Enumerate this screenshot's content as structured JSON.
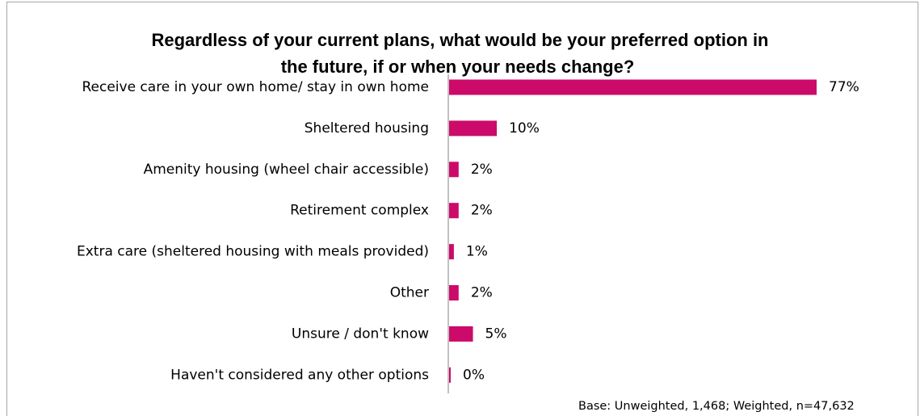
{
  "chart_data": {
    "type": "bar",
    "orientation": "horizontal",
    "title_lines": [
      "Regardless of your current plans, what would be your preferred option in",
      "the future, if or when your needs change?"
    ],
    "categories": [
      "Receive care in your own home/ stay in own home",
      "Sheltered housing",
      "Amenity housing (wheel chair accessible)",
      "Retirement complex",
      "Extra care (sheltered housing with meals provided)",
      "Other",
      "Unsure / don't know",
      "Haven't considered any other options"
    ],
    "values": [
      77,
      10,
      2,
      2,
      1,
      2,
      5,
      0
    ],
    "value_labels": [
      "77%",
      "10%",
      "2%",
      "2%",
      "1%",
      "2%",
      "5%",
      "0%"
    ],
    "unit": "%",
    "xlim": [
      0,
      77
    ],
    "bar_color": "#cc0a6a",
    "axis_color": "#808080",
    "grid": false,
    "legend": "none",
    "footnote": "Base: Unweighted, 1,468; Weighted, n=47,632"
  }
}
